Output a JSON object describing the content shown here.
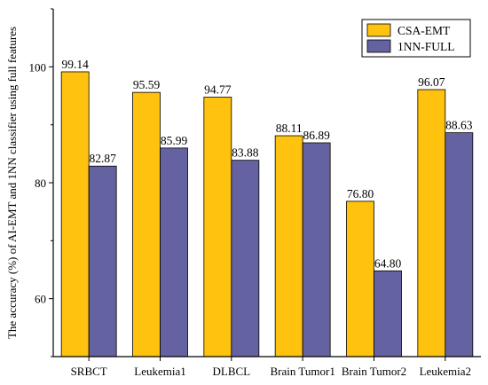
{
  "chart_data": {
    "type": "bar",
    "ylabel": "The accuracy (%) of AI-EMT and 1NN classifier using full features",
    "xlabel": "",
    "categories": [
      "SRBCT",
      "Leukemia1",
      "DLBCL",
      "Brain Tumor1",
      "Brain Tumor2",
      "Leukemia2"
    ],
    "series": [
      {
        "name": "CSA-EMT",
        "color": "#ffc20e",
        "values": [
          99.14,
          95.59,
          94.77,
          88.11,
          76.8,
          96.07
        ],
        "labels": [
          "99.14",
          "95.59",
          "94.77",
          "88.11",
          "76.80",
          "96.07"
        ]
      },
      {
        "name": "1NN-FULL",
        "color": "#6462a0",
        "values": [
          82.87,
          85.99,
          83.88,
          86.89,
          64.8,
          88.63
        ],
        "labels": [
          "82.87",
          "85.99",
          "83.88",
          "86.89",
          "64.80",
          "88.63"
        ]
      }
    ],
    "ylim": [
      50,
      110
    ],
    "yticks": [
      60,
      80,
      100
    ],
    "grid": false,
    "legend": "top-right"
  }
}
